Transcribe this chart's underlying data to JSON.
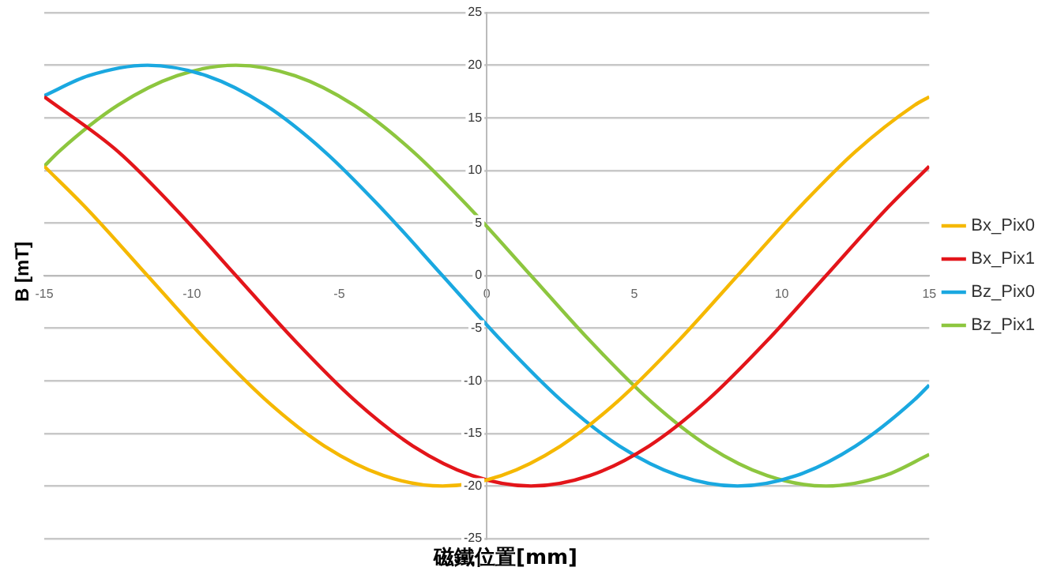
{
  "chart_data": {
    "type": "line",
    "xlabel": "磁鐵位置[mm]",
    "ylabel": "B [mT]",
    "xlim": [
      -15,
      15
    ],
    "xticks": [
      -15,
      -10,
      -5,
      0,
      5,
      10,
      15
    ],
    "ylim": [
      -25,
      25
    ],
    "yticks": [
      -25,
      -20,
      -15,
      -10,
      -5,
      0,
      5,
      10,
      15,
      20,
      25
    ],
    "grid": "y",
    "legend": "right",
    "marker": "none",
    "line_style": "solid",
    "series": [
      {
        "name": "Bx_Pix0",
        "color": "#f5b800",
        "x": [
          -15,
          -13.5,
          -11.5,
          -9.5,
          -7.5,
          -5.5,
          -3.5,
          -1.5,
          0.5,
          2.5,
          4.5,
          6.5,
          8.5,
          10.5,
          12.5,
          14.5,
          15
        ],
        "values": [
          10.4,
          6.2,
          0,
          -6.2,
          -11.8,
          -16.2,
          -19.0,
          -20,
          -19.0,
          -16.2,
          -11.8,
          -6.2,
          0,
          6.2,
          11.8,
          16.2,
          17.0
        ]
      },
      {
        "name": "Bx_Pix1",
        "color": "#e3151a",
        "x": [
          -15,
          -12.5,
          -10.5,
          -8.5,
          -6.5,
          -4.5,
          -2.5,
          -0.5,
          1.5,
          3.5,
          5.5,
          7.5,
          9.5,
          11.5,
          13.5,
          15
        ],
        "values": [
          17.0,
          11.8,
          6.2,
          0,
          -6.2,
          -11.8,
          -16.2,
          -19.0,
          -20,
          -19.0,
          -16.2,
          -11.8,
          -6.2,
          0,
          6.2,
          10.4
        ]
      },
      {
        "name": "Bz_Pix0",
        "color": "#1aa8e0",
        "x": [
          -15,
          -13.5,
          -11.5,
          -9.5,
          -7.5,
          -5.5,
          -3.5,
          -1.5,
          0.5,
          2.5,
          4.5,
          6.5,
          8.5,
          10.5,
          12.5,
          14.5,
          15
        ],
        "values": [
          17.1,
          19.0,
          20,
          19.0,
          16.2,
          11.8,
          6.2,
          0,
          -6.2,
          -11.8,
          -16.2,
          -19.0,
          -20,
          -19.0,
          -16.2,
          -11.8,
          -10.4
        ]
      },
      {
        "name": "Bz_Pix1",
        "color": "#8dc63f",
        "x": [
          -15,
          -14.5,
          -12.5,
          -10.5,
          -8.5,
          -6.5,
          -4.5,
          -2.5,
          -0.5,
          1.5,
          3.5,
          5.5,
          7.5,
          9.5,
          11.5,
          13.5,
          15
        ],
        "values": [
          10.4,
          11.8,
          16.2,
          19.0,
          20,
          19.0,
          16.2,
          11.8,
          6.2,
          0,
          -6.2,
          -11.8,
          -16.2,
          -19.0,
          -20,
          -19.0,
          -17.0
        ]
      }
    ]
  }
}
